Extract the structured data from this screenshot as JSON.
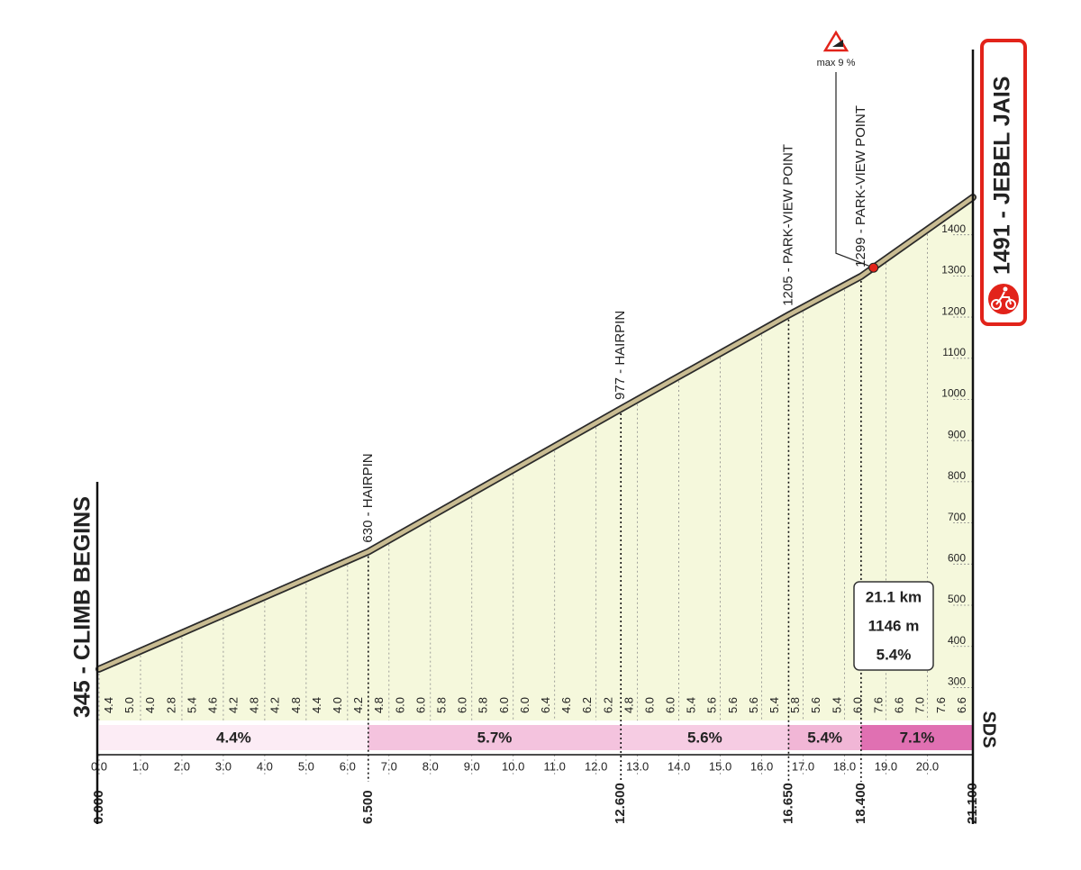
{
  "chart_data": {
    "type": "profile",
    "start_label": "345 - CLIMB BEGINS",
    "finish_label": "1491 - JEBEL JAIS",
    "logo": "SDS",
    "x": [
      0,
      6.5,
      12.6,
      16.65,
      18.4,
      21.1
    ],
    "values": [
      345,
      630,
      977,
      1205,
      1299,
      1491
    ],
    "fill_color": "#f5f8dc",
    "line_color": "#c9bc92",
    "xlim": [
      0,
      21.1
    ],
    "ylim": [
      220,
      1850
    ],
    "yticks": [
      300,
      400,
      500,
      600,
      700,
      800,
      900,
      1000,
      1100,
      1200,
      1300,
      1400
    ],
    "xticks": [
      {
        "value": 0,
        "label": "0.0"
      },
      {
        "value": 1,
        "label": "1.0"
      },
      {
        "value": 2,
        "label": "2.0"
      },
      {
        "value": 3,
        "label": "3.0"
      },
      {
        "value": 4,
        "label": "4.0"
      },
      {
        "value": 5,
        "label": "5.0"
      },
      {
        "value": 6,
        "label": "6.0"
      },
      {
        "value": 7,
        "label": "7.0"
      },
      {
        "value": 8,
        "label": "8.0"
      },
      {
        "value": 9,
        "label": "9.0"
      },
      {
        "value": 10,
        "label": "10.0"
      },
      {
        "value": 11,
        "label": "11.0"
      },
      {
        "value": 12,
        "label": "12.0"
      },
      {
        "value": 13,
        "label": "13.0"
      },
      {
        "value": 14,
        "label": "14.0"
      },
      {
        "value": 15,
        "label": "15.0"
      },
      {
        "value": 16,
        "label": "16.0"
      },
      {
        "value": 17,
        "label": "17.0"
      },
      {
        "value": 18,
        "label": "18.0"
      },
      {
        "value": 19,
        "label": "19.0"
      },
      {
        "value": 20,
        "label": "20.0"
      }
    ],
    "distance_marks": [
      {
        "value": 0,
        "label": "0.000"
      },
      {
        "value": 6.5,
        "label": "6.500"
      },
      {
        "value": 12.6,
        "label": "12.600"
      },
      {
        "value": 16.65,
        "label": "16.650"
      },
      {
        "value": 18.4,
        "label": "18.400"
      },
      {
        "value": 21.1,
        "label": "21.100"
      }
    ],
    "annotations": [
      {
        "x": 6.5,
        "y": 630,
        "label": "630 - HAIRPIN"
      },
      {
        "x": 12.6,
        "y": 977,
        "label": "977 - HAIRPIN"
      },
      {
        "x": 16.65,
        "y": 1205,
        "label": "1205 - PARK-VIEW POINT"
      },
      {
        "x": 18.4,
        "y": 1299,
        "label": "1299 - PARK-VIEW POINT"
      }
    ],
    "max_gradient": {
      "x": 18.7,
      "y": 1320,
      "value": 9,
      "label": "max 9 %"
    },
    "gradients": {
      "values": [
        4.4,
        5,
        4,
        2.8,
        5.4,
        4.6,
        4.2,
        4.8,
        4.2,
        4.8,
        4.4,
        4,
        4.2,
        4.8,
        6,
        6,
        5.8,
        6,
        5.8,
        6,
        6,
        6.4,
        4.6,
        6.2,
        6.2,
        4.8,
        6,
        6,
        5.4,
        5.6,
        5.6,
        5.6,
        5.4,
        5.8,
        5.6,
        5.4,
        6,
        7.6,
        6.6,
        7,
        7.6,
        6.6
      ],
      "value_labels": [
        "4.4",
        "5.0",
        "4.0",
        "2.8",
        "5.4",
        "4.6",
        "4.2",
        "4.8",
        "4.2",
        "4.8",
        "4.4",
        "4.0",
        "4.2",
        "4.8",
        "6.0",
        "6.0",
        "5.8",
        "6.0",
        "5.8",
        "6.0",
        "6.0",
        "6.4",
        "4.6",
        "6.2",
        "6.2",
        "4.8",
        "6.0",
        "6.0",
        "5.4",
        "5.6",
        "5.6",
        "5.6",
        "5.4",
        "5.8",
        "5.6",
        "5.4",
        "6.0",
        "7.6",
        "6.6",
        "7.0",
        "7.6",
        "6.6"
      ]
    },
    "sections": [
      {
        "from": 0,
        "to": 6.5,
        "value": 4.4,
        "label": "4.4%",
        "color": "#fcecf5"
      },
      {
        "from": 6.5,
        "to": 12.6,
        "value": 5.7,
        "label": "5.7%",
        "color": "#f4c3de"
      },
      {
        "from": 12.6,
        "to": 16.65,
        "value": 5.6,
        "label": "5.6%",
        "color": "#f6cce3"
      },
      {
        "from": 16.65,
        "to": 18.4,
        "value": 5.4,
        "label": "5.4%",
        "color": "#f1b6d6"
      },
      {
        "from": 18.4,
        "to": 21.1,
        "value": 7.1,
        "label": "7.1%",
        "color": "#e070b2"
      }
    ],
    "summary": [
      {
        "value": 21.1,
        "label": "21.1 km"
      },
      {
        "value": 1146,
        "label": "1146 m"
      },
      {
        "value": 5.4,
        "label": "5.4%"
      }
    ]
  }
}
